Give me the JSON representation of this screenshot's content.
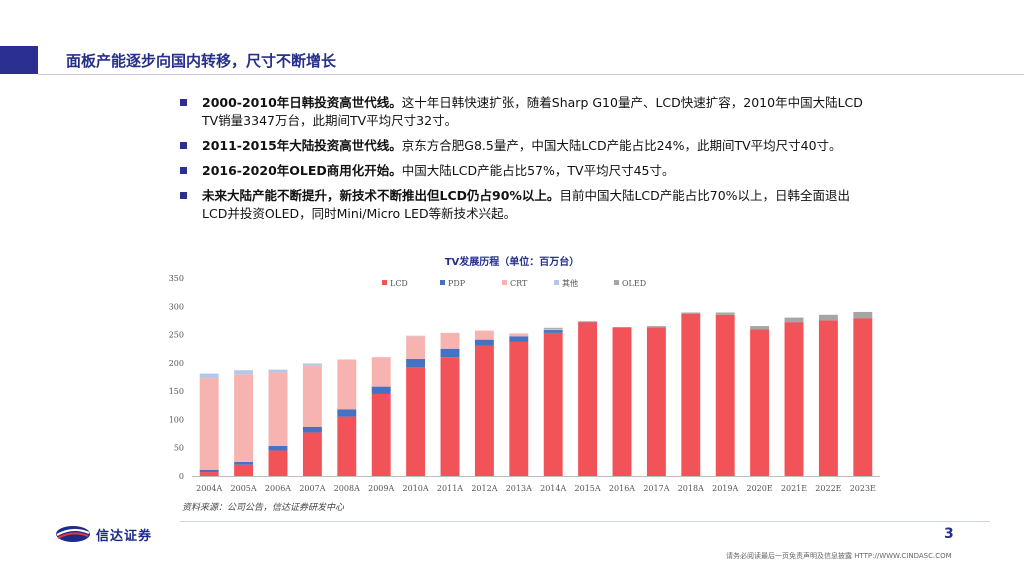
{
  "header": {
    "title": "面板产能逐步向国内转移，尺寸不断增长"
  },
  "bullets": [
    {
      "bold": "2000-2010年日韩投资高世代线。",
      "text": "这十年日韩快速扩张，随着Sharp G10量产、LCD快速扩容，2010年中国大陆LCD TV销量3347万台，此期间TV平均尺寸32寸。"
    },
    {
      "bold": "2011-2015年大陆投资高世代线。",
      "text": "京东方合肥G8.5量产，中国大陆LCD产能占比24%，此期间TV平均尺寸40寸。"
    },
    {
      "bold": "2016-2020年OLED商用化开始。",
      "text": "中国大陆LCD产能占比57%，TV平均尺寸45寸。"
    },
    {
      "bold": "未来大陆产能不断提升，新技术不断推出但LCD仍占90%以上。",
      "text": "目前中国大陆LCD产能占比70%以上，日韩全面退出LCD并投资OLED，同时Mini/Micro LED等新技术兴起。"
    }
  ],
  "chart_data": {
    "type": "bar",
    "stacked": true,
    "title": "TV发展历程（单位：百万台）",
    "categories": [
      "2004A",
      "2005A",
      "2006A",
      "2007A",
      "2008A",
      "2009A",
      "2010A",
      "2011A",
      "2012A",
      "2013A",
      "2014A",
      "2015A",
      "2016A",
      "2017A",
      "2018A",
      "2019A",
      "2020E",
      "2021E",
      "2022E",
      "2023E"
    ],
    "series": [
      {
        "name": "LCD",
        "color": "#f25358",
        "values": [
          7,
          20,
          45,
          77,
          105,
          145,
          192,
          210,
          230,
          237,
          253,
          272,
          263,
          263,
          287,
          285,
          259,
          272,
          275,
          279
        ]
      },
      {
        "name": "PDP",
        "color": "#4472c4",
        "values": [
          4,
          5,
          8,
          10,
          13,
          13,
          15,
          15,
          11,
          10,
          5,
          1,
          0,
          0,
          0,
          0,
          0,
          0,
          0,
          0
        ]
      },
      {
        "name": "CRT",
        "color": "#f7b3b0",
        "values": [
          162,
          155,
          130,
          108,
          88,
          52,
          40,
          28,
          16,
          5,
          1,
          0,
          0,
          0,
          0,
          0,
          0,
          0,
          0,
          0
        ]
      },
      {
        "name": "其他",
        "color": "#b4c7e7",
        "values": [
          8,
          7,
          5,
          4,
          0,
          0,
          1,
          0,
          0,
          0,
          1,
          0,
          0,
          0,
          0,
          0,
          0,
          0,
          0,
          0
        ]
      },
      {
        "name": "OLED",
        "color": "#a6a6a6",
        "values": [
          0,
          0,
          0,
          0,
          0,
          0,
          0,
          0,
          0,
          0,
          2,
          0,
          0,
          2,
          2,
          4,
          6,
          8,
          10,
          11
        ]
      }
    ],
    "ylim": [
      0,
      350
    ],
    "yticks": [
      0,
      50,
      100,
      150,
      200,
      250,
      300,
      350
    ],
    "legend": "top",
    "grid": false
  },
  "source": "资料来源：公司公告，信达证券研发中心",
  "footer": {
    "logo_text": "信达证券",
    "page_number": "3",
    "disclaimer": "请务必阅读最后一页免责声明及信息披露  HTTP://WWW.CINDASC.COM"
  },
  "colors": {
    "brand": "#2b2f8f",
    "title": "#26308c"
  }
}
